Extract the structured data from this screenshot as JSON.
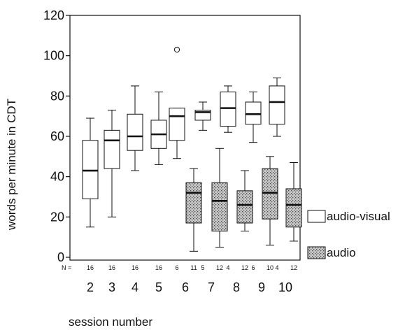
{
  "chart_data": {
    "type": "boxplot",
    "xlabel": "session number",
    "ylabel": "words per minute in CDT",
    "ylim": [
      0,
      120
    ],
    "yticks": [
      0,
      20,
      40,
      60,
      80,
      100,
      120
    ],
    "n_label": "N =",
    "categories": [
      "2",
      "3",
      "4",
      "5",
      "6",
      "7",
      "8",
      "9",
      "10"
    ],
    "legend_position": "right",
    "series": [
      {
        "name": "audio-visual",
        "fill": "#ffffff",
        "boxes": [
          {
            "category": "2",
            "n": "16",
            "whisker_low": 15,
            "q1": 29,
            "median": 43,
            "q3": 58,
            "whisker_high": 69
          },
          {
            "category": "3",
            "n": "16",
            "whisker_low": 20,
            "q1": 44,
            "median": 58,
            "q3": 63,
            "whisker_high": 73
          },
          {
            "category": "4",
            "n": "16",
            "whisker_low": 43,
            "q1": 53,
            "median": 60,
            "q3": 71,
            "whisker_high": 85
          },
          {
            "category": "5",
            "n": "16",
            "whisker_low": 46,
            "q1": 54,
            "median": 61,
            "q3": 68,
            "whisker_high": 82
          },
          {
            "category": "6",
            "n": "6",
            "whisker_low": 49,
            "q1": 58,
            "median": 70,
            "q3": 74,
            "whisker_high": 74,
            "outliers": [
              103
            ]
          },
          {
            "category": "7",
            "n": "5",
            "whisker_low": 63,
            "q1": 68,
            "median": 72,
            "q3": 73,
            "whisker_high": 77
          },
          {
            "category": "8",
            "n": "4",
            "whisker_low": 62,
            "q1": 65,
            "median": 74,
            "q3": 82,
            "whisker_high": 85
          },
          {
            "category": "9",
            "n": "6",
            "whisker_low": 57,
            "q1": 66,
            "median": 71,
            "q3": 77,
            "whisker_high": 82
          },
          {
            "category": "10",
            "n": "4",
            "whisker_low": 60,
            "q1": 66,
            "median": 77,
            "q3": 85,
            "whisker_high": 89
          }
        ]
      },
      {
        "name": "audio",
        "fill": "#b8b8b8",
        "boxes": [
          {
            "category": "6",
            "n": "11",
            "whisker_low": 3,
            "q1": 17,
            "median": 32,
            "q3": 37,
            "whisker_high": 44
          },
          {
            "category": "7",
            "n": "12",
            "whisker_low": 5,
            "q1": 13,
            "median": 28,
            "q3": 37,
            "whisker_high": 54
          },
          {
            "category": "8",
            "n": "12",
            "whisker_low": 13,
            "q1": 17,
            "median": 26,
            "q3": 33,
            "whisker_high": 43
          },
          {
            "category": "9",
            "n": "10",
            "whisker_low": 6,
            "q1": 19,
            "median": 32,
            "q3": 44,
            "whisker_high": 50
          },
          {
            "category": "10",
            "n": "12",
            "whisker_low": 8,
            "q1": 15,
            "median": 26,
            "q3": 34,
            "whisker_high": 47
          }
        ]
      }
    ]
  }
}
